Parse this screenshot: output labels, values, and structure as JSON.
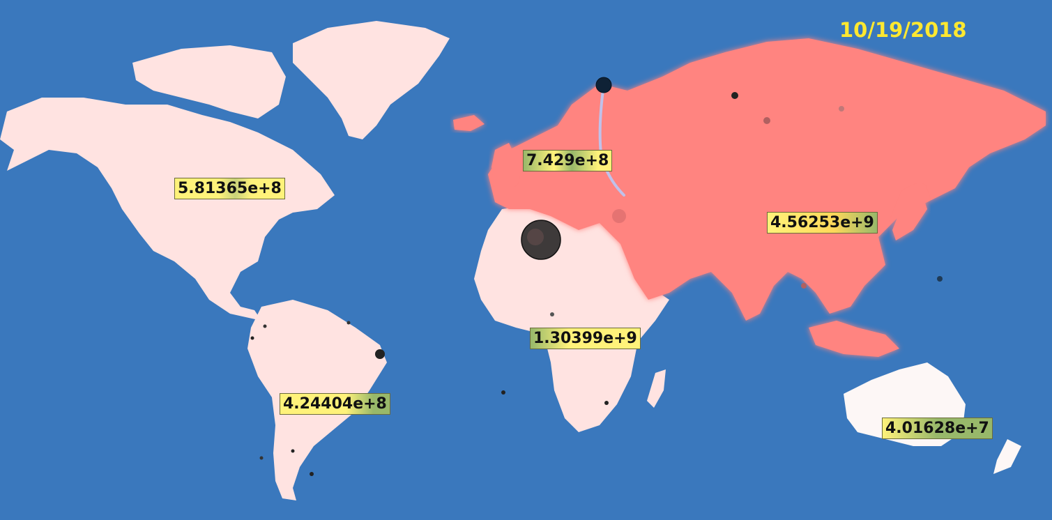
{
  "date": "10/19/2018",
  "colors": {
    "ocean": "#3a78bd",
    "land_light": "#ffe3e1",
    "land_eurasia": "#ff8480",
    "land_australia": "#fdf7f6",
    "date_text": "#ffe830",
    "label_yellow": "#fff27a",
    "label_green": "#98b86a"
  },
  "regions": [
    {
      "name": "North America",
      "value_label": "5.81365e+8"
    },
    {
      "name": "Europe",
      "value_label": "7.429e+8"
    },
    {
      "name": "Asia",
      "value_label": "4.56253e+9"
    },
    {
      "name": "Africa",
      "value_label": "1.30399e+9"
    },
    {
      "name": "South America",
      "value_label": "4.24404e+8"
    },
    {
      "name": "Oceania",
      "value_label": "4.01628e+7"
    }
  ]
}
